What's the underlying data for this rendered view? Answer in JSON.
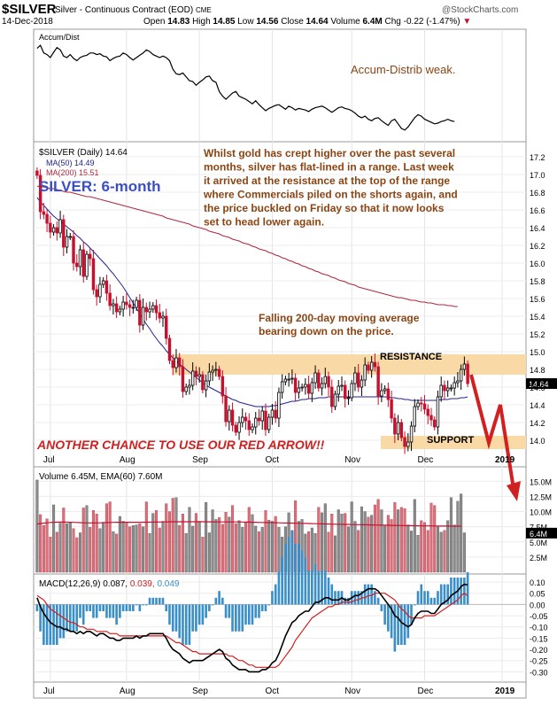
{
  "header": {
    "symbol": "$SILVER",
    "name": "Silver - Continuous Contract (EOD)",
    "exchange": "CME",
    "date": "14-Dec-2018",
    "copyright": "@StockCharts.com",
    "open_label": "Open",
    "open": "14.83",
    "high_label": "High",
    "high": "14.85",
    "low_label": "Low",
    "low": "14.56",
    "close_label": "Close",
    "close": "14.64",
    "volume_label": "Volume",
    "volume": "6.4M",
    "chg_label": "Chg",
    "chg": "-0.22 (-1.47%)"
  },
  "colors": {
    "up": "#000000",
    "down": "#c8102e",
    "ma50": "#23238e",
    "ma200": "#b0273c",
    "annotation": "#8b4513",
    "arrow": "#d21f1f",
    "band": "#f9d9a6",
    "vol_up": "#8c8c8c",
    "vol_down": "#d9707a",
    "hist": "#3a8fc8"
  },
  "panels": {
    "ad": {
      "legend": "Accum/Dist",
      "note": "Accum-Distrib weak."
    },
    "price": {
      "legend1": "$SILVER (Daily) 14.64",
      "legend2": "MA(50) 14.49",
      "legend3": "MA(200) 15.51",
      "period_label": "SILVER: 6-month",
      "commentary": [
        "Whilst gold has crept higher over the past several",
        "months, silver has flat-lined in a range. Last week",
        "it arrived at the resistance at the top of the range",
        "where Commercials piled on the shorts again, and",
        "the price buckled on Friday so that it now looks",
        "set to head lower again."
      ],
      "ma_note": [
        "Falling 200-day moving average",
        "bearing down on the price."
      ],
      "resistance_label": "RESISTANCE",
      "support_label": "SUPPORT",
      "arrow_note": "ANOTHER CHANCE TO USE OUR RED ARROW!!"
    },
    "volume": {
      "legend1": "Volume 6.45M,",
      "legend2": "EMA(60) 7.60M"
    },
    "macd": {
      "legend1": "MACD(12,26,9)",
      "v1": "0.087,",
      "v2": "0.039,",
      "v3": "0.049"
    }
  },
  "x_axis": {
    "months": [
      "Jul",
      "Aug",
      "Sep",
      "Oct",
      "Nov",
      "Dec",
      "2019"
    ]
  },
  "chart_data": [
    {
      "type": "line",
      "title": "Accum/Dist",
      "values": [
        82,
        86,
        76,
        74,
        70,
        77,
        83,
        80,
        72,
        70,
        74,
        69,
        66,
        70,
        72,
        73,
        76,
        76,
        74,
        75,
        72,
        71,
        66,
        69,
        71,
        72,
        76,
        74,
        70,
        67,
        70,
        73,
        76,
        80,
        78,
        74,
        72,
        70,
        72,
        70,
        66,
        55,
        49,
        48,
        50,
        45,
        40,
        39,
        34,
        38,
        41,
        45,
        46,
        40,
        38,
        26,
        20,
        16,
        20,
        24,
        26,
        20,
        18,
        16,
        13,
        10,
        14,
        9,
        5,
        1,
        4,
        6,
        8,
        9,
        6,
        3,
        7,
        5,
        2,
        4,
        3,
        2,
        0,
        3,
        5,
        6,
        7,
        5,
        2,
        -1,
        2,
        5,
        6,
        4,
        3,
        1,
        -2,
        -6,
        -8,
        -6,
        -10,
        -12,
        -9,
        -8,
        -12,
        -15,
        -18,
        -12,
        -10,
        -16,
        -22,
        -24,
        -20,
        -14,
        -8,
        -4,
        -6,
        -10,
        -12,
        -14,
        -16,
        -15,
        -13,
        -12,
        -10,
        -12,
        -13
      ]
    },
    {
      "type": "candlestick",
      "series": "$SILVER (Daily)",
      "y_ticks": [
        14.0,
        14.2,
        14.4,
        14.6,
        14.8,
        15.0,
        15.2,
        15.4,
        15.6,
        15.8,
        16.0,
        16.2,
        16.4,
        16.6,
        16.8,
        17.0,
        17.2
      ],
      "ylim": [
        13.82,
        17.32
      ],
      "last": 14.64,
      "closes": [
        16.99,
        16.58,
        16.55,
        16.45,
        16.35,
        16.4,
        16.34,
        16.49,
        16.18,
        16.3,
        16.3,
        16.0,
        15.96,
        16.15,
        15.85,
        16.1,
        16.05,
        15.7,
        15.62,
        15.76,
        15.8,
        15.66,
        15.52,
        15.54,
        15.45,
        15.48,
        15.56,
        15.53,
        15.5,
        15.5,
        15.58,
        15.3,
        15.5,
        15.45,
        15.48,
        15.52,
        15.44,
        15.38,
        15.4,
        15.15,
        14.9,
        14.82,
        14.93,
        14.83,
        14.55,
        14.6,
        14.62,
        14.78,
        14.72,
        14.74,
        14.57,
        14.67,
        14.77,
        14.79,
        14.8,
        14.72,
        14.5,
        14.21,
        14.34,
        14.17,
        14.09,
        14.2,
        14.26,
        14.22,
        14.12,
        14.15,
        14.25,
        14.22,
        14.33,
        14.12,
        14.26,
        14.34,
        14.25,
        14.54,
        14.66,
        14.69,
        14.69,
        14.7,
        14.54,
        14.59,
        14.6,
        14.63,
        14.53,
        14.65,
        14.76,
        14.59,
        14.64,
        14.72,
        14.6,
        14.38,
        14.52,
        14.61,
        14.62,
        14.47,
        14.48,
        14.64,
        14.76,
        14.6,
        14.68,
        14.85,
        14.79,
        14.88,
        14.83,
        14.5,
        14.56,
        14.58,
        14.46,
        14.25,
        14.07,
        14.2,
        14.03,
        13.93,
        13.98,
        14.16,
        14.38,
        14.42,
        14.41,
        14.35,
        14.28,
        14.23,
        14.15,
        14.49,
        14.62,
        14.56,
        14.59,
        14.59,
        14.65,
        14.67,
        14.8,
        14.86,
        14.64
      ],
      "ma50": [
        16.74,
        16.69,
        16.65,
        16.61,
        16.57,
        16.53,
        16.5,
        16.47,
        16.44,
        16.41,
        16.38,
        16.35,
        16.31,
        16.28,
        16.24,
        16.21,
        16.17,
        16.13,
        16.09,
        16.05,
        16.01,
        15.97,
        15.92,
        15.88,
        15.83,
        15.78,
        15.73,
        15.67,
        15.61,
        15.55,
        15.49,
        15.43,
        15.37,
        15.31,
        15.26,
        15.2,
        15.15,
        15.1,
        15.06,
        15.01,
        14.97,
        14.93,
        14.9,
        14.86,
        14.83,
        14.8,
        14.77,
        14.74,
        14.71,
        14.68,
        14.65,
        14.62,
        14.6,
        14.58,
        14.56,
        14.54,
        14.52,
        14.5,
        14.48,
        14.46,
        14.45,
        14.43,
        14.42,
        14.41,
        14.4,
        14.39,
        14.38,
        14.38,
        14.38,
        14.38,
        14.38,
        14.39,
        14.39,
        14.4,
        14.41,
        14.42,
        14.43,
        14.44,
        14.44,
        14.45,
        14.46,
        14.46,
        14.47,
        14.47,
        14.47,
        14.48,
        14.48,
        14.48,
        14.49,
        14.49,
        14.49,
        14.49,
        14.49,
        14.49,
        14.49,
        14.49,
        14.49,
        14.49,
        14.49,
        14.49,
        14.49,
        14.49,
        14.49,
        14.49,
        14.49,
        14.49,
        14.49,
        14.48,
        14.48,
        14.47,
        14.47,
        14.46,
        14.46,
        14.45,
        14.45,
        14.45,
        14.45,
        14.45,
        14.45,
        14.45,
        14.45,
        14.45,
        14.46,
        14.46,
        14.46,
        14.47,
        14.47,
        14.47,
        14.48,
        14.48,
        14.49
      ],
      "ma200": [
        16.87,
        16.86,
        16.86,
        16.85,
        16.84,
        16.84,
        16.83,
        16.82,
        16.81,
        16.8,
        16.8,
        16.79,
        16.78,
        16.77,
        16.76,
        16.75,
        16.75,
        16.74,
        16.73,
        16.72,
        16.71,
        16.7,
        16.69,
        16.68,
        16.67,
        16.66,
        16.65,
        16.64,
        16.63,
        16.62,
        16.61,
        16.6,
        16.59,
        16.58,
        16.57,
        16.56,
        16.55,
        16.54,
        16.53,
        16.51,
        16.5,
        16.49,
        16.48,
        16.47,
        16.46,
        16.45,
        16.44,
        16.42,
        16.41,
        16.4,
        16.39,
        16.38,
        16.36,
        16.35,
        16.34,
        16.33,
        16.31,
        16.3,
        16.29,
        16.27,
        16.26,
        16.25,
        16.23,
        16.22,
        16.21,
        16.19,
        16.18,
        16.16,
        16.15,
        16.14,
        16.12,
        16.11,
        16.09,
        16.08,
        16.06,
        16.05,
        16.03,
        16.02,
        16.0,
        15.99,
        15.97,
        15.96,
        15.94,
        15.93,
        15.91,
        15.9,
        15.88,
        15.87,
        15.86,
        15.84,
        15.83,
        15.81,
        15.8,
        15.79,
        15.77,
        15.76,
        15.75,
        15.73,
        15.72,
        15.71,
        15.7,
        15.69,
        15.68,
        15.67,
        15.66,
        15.65,
        15.64,
        15.63,
        15.62,
        15.61,
        15.61,
        15.6,
        15.59,
        15.58,
        15.58,
        15.57,
        15.56,
        15.56,
        15.55,
        15.55,
        15.54,
        15.53,
        15.53,
        15.53,
        15.52,
        15.52,
        15.51,
        15.51
      ]
    },
    {
      "type": "bar",
      "title": "Volume",
      "y_ticks": [
        "2.5M",
        "5.0M",
        "7.5M",
        "10.0M",
        "12.5M",
        "15.0M"
      ],
      "ylim": [
        0,
        16.5
      ],
      "unit": "M",
      "values": [
        15.2,
        9.5,
        7.7,
        8.8,
        5.8,
        11.1,
        6.6,
        8.1,
        10.6,
        8.0,
        8.2,
        7.2,
        5.7,
        6.5,
        10.6,
        11.0,
        7.4,
        10.2,
        9.6,
        7.2,
        8.1,
        11.3,
        11.6,
        6.7,
        6.3,
        9.2,
        8.4,
        8.1,
        7.5,
        7.7,
        7.8,
        8.0,
        7.5,
        11.6,
        6.4,
        9.7,
        10.2,
        7.3,
        8.4,
        11.3,
        10.0,
        12.2,
        12.3,
        7.7,
        9.6,
        6.4,
        10.7,
        7.6,
        9.7,
        8.4,
        5.8,
        11.5,
        6.5,
        10.3,
        8.7,
        9.0,
        7.9,
        9.9,
        9.1,
        11.0,
        8.0,
        8.5,
        7.4,
        8.2,
        10.7,
        9.5,
        7.6,
        6.7,
        7.4,
        10.2,
        8.6,
        8.4,
        9.2,
        7.4,
        5.8,
        7.5,
        9.8,
        6.9,
        11.8,
        8.4,
        8.7,
        6.3,
        6.7,
        7.3,
        6.4,
        10.7,
        9.8,
        11.3,
        6.6,
        9.6,
        6.0,
        10.3,
        9.6,
        9.7,
        7.5,
        11.6,
        8.4,
        6.9,
        10.8,
        10.0,
        9.1,
        9.4,
        11.1,
        12.0,
        10.3,
        7.6,
        9.4,
        8.7,
        11.5,
        10.3,
        10.7,
        10.5,
        7.8,
        6.8,
        12.0,
        6.1,
        8.5,
        8.2,
        6.9,
        11.4,
        11.0,
        7.5,
        6.6,
        6.9,
        8.5,
        12.3,
        7.8,
        11.7,
        12.9,
        6.5
      ],
      "ema60": [
        7.95,
        8.03,
        8.1,
        8.15,
        8.2,
        8.23,
        8.25,
        8.26,
        8.26,
        8.25,
        8.24,
        8.22,
        8.2,
        8.17,
        8.15,
        8.14,
        8.13,
        8.12,
        8.13,
        8.15,
        8.17,
        8.19,
        8.21,
        8.22,
        8.23,
        8.24,
        8.24,
        8.24,
        8.24,
        8.24,
        8.24,
        8.24,
        8.24,
        8.25,
        8.25,
        8.26,
        8.27,
        8.28,
        8.29,
        8.3,
        8.31,
        8.32,
        8.32,
        8.33,
        8.33,
        8.33,
        8.33,
        8.33,
        8.33,
        8.33,
        8.32,
        8.32,
        8.31,
        8.31,
        8.3,
        8.3,
        8.3,
        8.3,
        8.3,
        8.3,
        8.3,
        8.29,
        8.28,
        8.27,
        8.26,
        8.24,
        8.23,
        8.21,
        8.2,
        8.19,
        8.18,
        8.17,
        8.16,
        8.15,
        8.14,
        8.12,
        8.11,
        8.1,
        8.08,
        8.07,
        8.06,
        8.04,
        8.03,
        8.01,
        8.0,
        7.98,
        7.97,
        7.96,
        7.94,
        7.93,
        7.92,
        7.91,
        7.9,
        7.89,
        7.88,
        7.86,
        7.85,
        7.84,
        7.83,
        7.82,
        7.81,
        7.8,
        7.79,
        7.78,
        7.76,
        7.75,
        7.74,
        7.73,
        7.72,
        7.71,
        7.7,
        7.69,
        7.68,
        7.67,
        7.66,
        7.65,
        7.64,
        7.64,
        7.63,
        7.63,
        7.62,
        7.62,
        7.61,
        7.61,
        7.61,
        7.6,
        7.6,
        7.6,
        7.6
      ]
    },
    {
      "type": "line",
      "title": "MACD(12,26,9)",
      "y_ticks": [
        -0.3,
        -0.25,
        -0.2,
        -0.15,
        -0.1,
        -0.05,
        0.0,
        0.05,
        0.1
      ],
      "ylim": [
        -0.33,
        0.12
      ],
      "macd": [
        0.03,
        -0.01,
        -0.04,
        -0.06,
        -0.08,
        -0.09,
        -0.1,
        -0.1,
        -0.11,
        -0.11,
        -0.12,
        -0.12,
        -0.13,
        -0.12,
        -0.13,
        -0.12,
        -0.12,
        -0.13,
        -0.14,
        -0.13,
        -0.13,
        -0.14,
        -0.15,
        -0.15,
        -0.16,
        -0.16,
        -0.15,
        -0.15,
        -0.15,
        -0.15,
        -0.14,
        -0.15,
        -0.14,
        -0.14,
        -0.13,
        -0.13,
        -0.13,
        -0.13,
        -0.13,
        -0.15,
        -0.18,
        -0.2,
        -0.21,
        -0.22,
        -0.24,
        -0.25,
        -0.26,
        -0.25,
        -0.25,
        -0.25,
        -0.25,
        -0.24,
        -0.23,
        -0.22,
        -0.21,
        -0.2,
        -0.21,
        -0.24,
        -0.25,
        -0.27,
        -0.28,
        -0.29,
        -0.29,
        -0.29,
        -0.3,
        -0.3,
        -0.3,
        -0.3,
        -0.29,
        -0.29,
        -0.28,
        -0.26,
        -0.25,
        -0.22,
        -0.18,
        -0.14,
        -0.11,
        -0.08,
        -0.07,
        -0.05,
        -0.04,
        -0.03,
        -0.03,
        -0.01,
        0.01,
        0.01,
        0.02,
        0.03,
        0.03,
        0.02,
        0.02,
        0.02,
        0.03,
        0.02,
        0.02,
        0.03,
        0.04,
        0.04,
        0.05,
        0.06,
        0.07,
        0.07,
        0.07,
        0.06,
        0.04,
        0.02,
        0.0,
        -0.02,
        -0.05,
        -0.06,
        -0.08,
        -0.09,
        -0.1,
        -0.09,
        -0.06,
        -0.04,
        -0.03,
        -0.03,
        -0.03,
        -0.04,
        -0.04,
        -0.02,
        0.0,
        0.01,
        0.02,
        0.04,
        0.05,
        0.06,
        0.08,
        0.09,
        0.087
      ],
      "signal": [
        0.04,
        0.03,
        0.02,
        0.0,
        -0.02,
        -0.03,
        -0.04,
        -0.05,
        -0.06,
        -0.07,
        -0.08,
        -0.08,
        -0.09,
        -0.1,
        -0.1,
        -0.11,
        -0.11,
        -0.11,
        -0.12,
        -0.12,
        -0.12,
        -0.12,
        -0.13,
        -0.13,
        -0.13,
        -0.14,
        -0.14,
        -0.14,
        -0.14,
        -0.14,
        -0.14,
        -0.14,
        -0.14,
        -0.14,
        -0.14,
        -0.14,
        -0.14,
        -0.14,
        -0.14,
        -0.14,
        -0.15,
        -0.16,
        -0.17,
        -0.17,
        -0.18,
        -0.19,
        -0.2,
        -0.21,
        -0.21,
        -0.22,
        -0.22,
        -0.22,
        -0.22,
        -0.22,
        -0.22,
        -0.22,
        -0.22,
        -0.22,
        -0.23,
        -0.23,
        -0.24,
        -0.25,
        -0.25,
        -0.26,
        -0.27,
        -0.27,
        -0.28,
        -0.28,
        -0.28,
        -0.28,
        -0.28,
        -0.28,
        -0.28,
        -0.27,
        -0.25,
        -0.23,
        -0.21,
        -0.19,
        -0.16,
        -0.14,
        -0.12,
        -0.1,
        -0.08,
        -0.06,
        -0.05,
        -0.04,
        -0.03,
        -0.02,
        -0.01,
        -0.01,
        0.0,
        0.0,
        0.01,
        0.01,
        0.01,
        0.01,
        0.02,
        0.02,
        0.03,
        0.03,
        0.04,
        0.04,
        0.05,
        0.05,
        0.05,
        0.05,
        0.04,
        0.03,
        0.02,
        0.0,
        -0.02,
        -0.03,
        -0.05,
        -0.06,
        -0.06,
        -0.06,
        -0.06,
        -0.05,
        -0.05,
        -0.05,
        -0.05,
        -0.04,
        -0.03,
        -0.02,
        -0.01,
        0.0,
        0.01,
        0.02,
        0.04,
        0.05,
        0.039
      ]
    }
  ]
}
